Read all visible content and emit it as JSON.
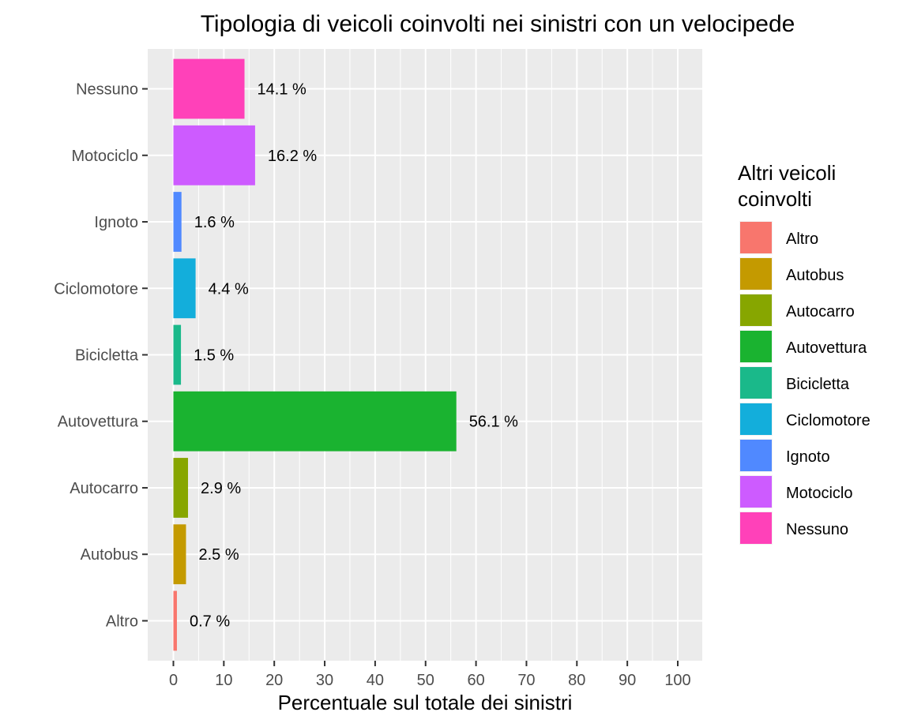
{
  "chart_data": {
    "type": "bar",
    "orientation": "horizontal",
    "title": "Tipologia di veicoli coinvolti nei sinistri con un velocipede",
    "xlabel": "Percentuale sul totale dei sinistri",
    "ylabel": "",
    "xlim": [
      0,
      100
    ],
    "x_ticks": [
      "0",
      "10",
      "20",
      "30",
      "40",
      "50",
      "60",
      "70",
      "80",
      "90",
      "100"
    ],
    "grid": true,
    "legend_position": "right",
    "legend_title": "Altri veicoli\ncoinvolti",
    "categories": [
      "Altro",
      "Autobus",
      "Autocarro",
      "Autovettura",
      "Bicicletta",
      "Ciclomotore",
      "Ignoto",
      "Motociclo",
      "Nessuno"
    ],
    "values": [
      0.7,
      2.5,
      2.9,
      56.1,
      1.5,
      4.4,
      1.6,
      16.2,
      14.1
    ],
    "labels": [
      "0.7 %",
      "2.5 %",
      "2.9 %",
      "56.1 %",
      "1.5 %",
      "4.4 %",
      "1.6 %",
      "16.2 %",
      "14.1 %"
    ],
    "colors": [
      "#F8766D",
      "#C49A00",
      "#87A600",
      "#1AB330",
      "#1AB98A",
      "#13AEDB",
      "#5089FF",
      "#CD5BFF",
      "#FF41B9"
    ]
  }
}
